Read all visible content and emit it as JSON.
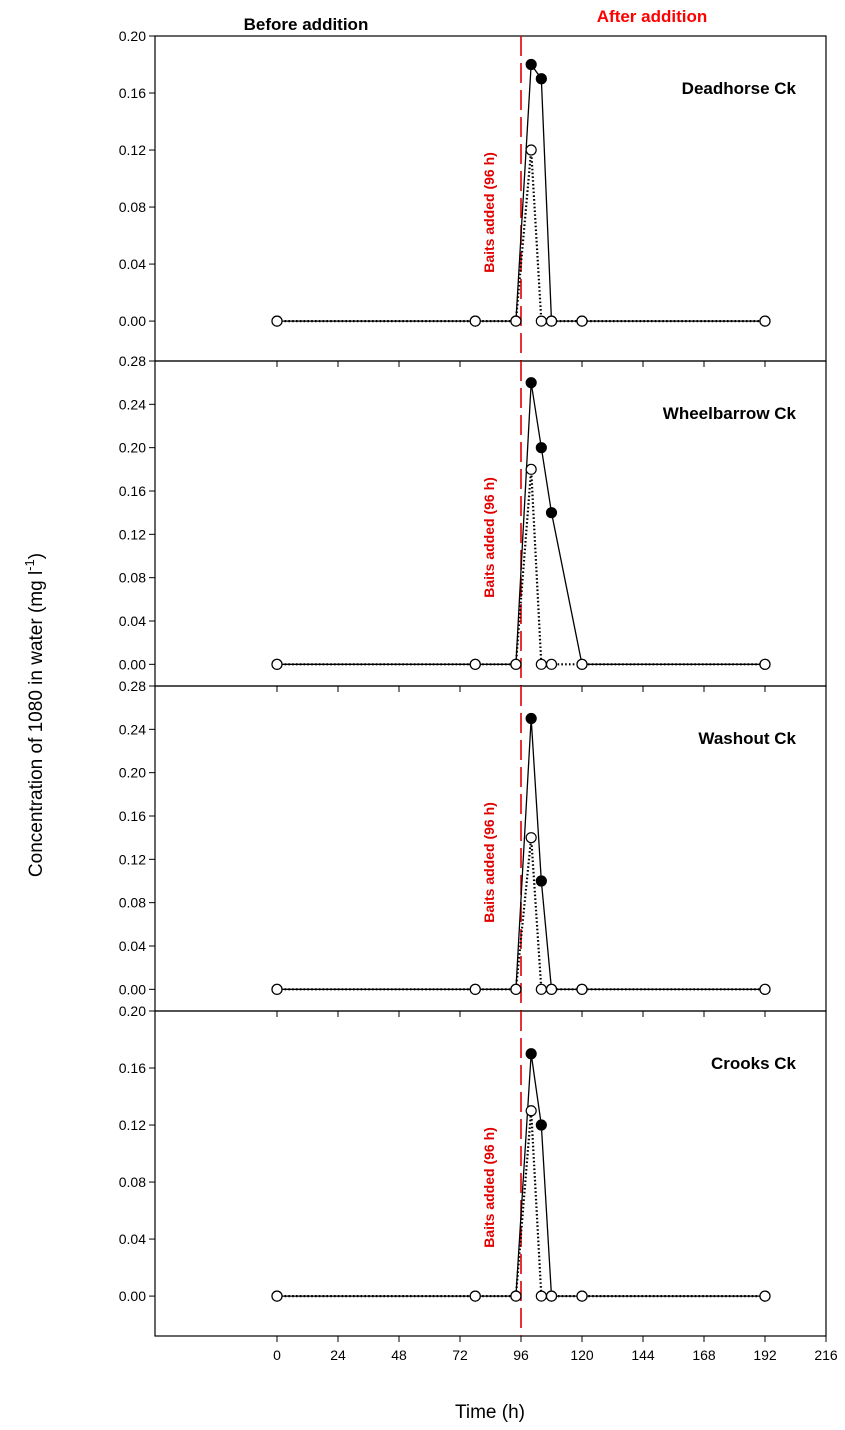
{
  "header": {
    "before_label": "Before addition",
    "after_label": "After addition",
    "after_color": "#ff0000"
  },
  "axes": {
    "ylabel": "Concentration of 1080 in water (mg l",
    "ylabel_superscript": "-1",
    "ylabel_close": ")",
    "xlabel": "Time (h)",
    "x_ticks": [
      0,
      24,
      48,
      72,
      96,
      120,
      144,
      168,
      192,
      216
    ],
    "x_range": [
      -48,
      216
    ]
  },
  "annotation": {
    "label": "Baits added (96 h)",
    "x": 96,
    "color": "#e00000"
  },
  "chart_data": [
    {
      "type": "line",
      "title": "Deadhorse Ck",
      "ylim": [
        -0.028,
        0.2
      ],
      "y_ticks": [
        "0.00",
        "0.04",
        "0.08",
        "0.12",
        "0.16",
        "0.20"
      ],
      "series": [
        {
          "style": "solid-filled",
          "x": [
            0,
            78,
            94,
            100,
            104,
            108,
            120,
            192
          ],
          "y": [
            0,
            0,
            0,
            0.18,
            0.17,
            0,
            0,
            0
          ],
          "marker_filled": [
            false,
            false,
            false,
            true,
            true,
            false,
            false,
            false
          ]
        },
        {
          "style": "dotted-open",
          "x": [
            0,
            78,
            94,
            100,
            104,
            108,
            120,
            192
          ],
          "y": [
            0,
            0,
            0,
            0.12,
            0,
            0,
            0,
            0
          ]
        }
      ]
    },
    {
      "type": "line",
      "title": "Wheelbarrow Ck",
      "ylim": [
        -0.02,
        0.28
      ],
      "y_ticks": [
        "0.00",
        "0.04",
        "0.08",
        "0.12",
        "0.16",
        "0.20",
        "0.24",
        "0.28"
      ],
      "series": [
        {
          "style": "solid-filled",
          "x": [
            0,
            78,
            94,
            100,
            104,
            108,
            120,
            192
          ],
          "y": [
            0,
            0,
            0,
            0.26,
            0.2,
            0.14,
            0,
            0
          ],
          "marker_filled": [
            false,
            false,
            false,
            true,
            true,
            true,
            false,
            false
          ]
        },
        {
          "style": "dotted-open",
          "x": [
            0,
            78,
            94,
            100,
            104,
            108,
            120,
            192
          ],
          "y": [
            0,
            0,
            0,
            0.18,
            0,
            0,
            0,
            0
          ]
        }
      ]
    },
    {
      "type": "line",
      "title": "Washout Ck",
      "ylim": [
        -0.02,
        0.28
      ],
      "y_ticks": [
        "0.00",
        "0.04",
        "0.08",
        "0.12",
        "0.16",
        "0.20",
        "0.24",
        "0.28"
      ],
      "series": [
        {
          "style": "solid-filled",
          "x": [
            0,
            78,
            94,
            100,
            104,
            108,
            120,
            192
          ],
          "y": [
            0,
            0,
            0,
            0.25,
            0.1,
            0,
            0,
            0
          ],
          "marker_filled": [
            false,
            false,
            false,
            true,
            true,
            false,
            false,
            false
          ]
        },
        {
          "style": "dotted-open",
          "x": [
            0,
            78,
            94,
            100,
            104,
            108,
            120,
            192
          ],
          "y": [
            0,
            0,
            0,
            0.14,
            0,
            0,
            0,
            0
          ]
        }
      ]
    },
    {
      "type": "line",
      "title": "Crooks Ck",
      "ylim": [
        -0.028,
        0.2
      ],
      "y_ticks": [
        "0.00",
        "0.04",
        "0.08",
        "0.12",
        "0.16",
        "0.20"
      ],
      "series": [
        {
          "style": "solid-filled",
          "x": [
            0,
            78,
            94,
            100,
            104,
            108,
            120,
            192
          ],
          "y": [
            0,
            0,
            0,
            0.17,
            0.12,
            0,
            0,
            0
          ],
          "marker_filled": [
            false,
            false,
            false,
            true,
            true,
            false,
            false,
            false
          ]
        },
        {
          "style": "dotted-open",
          "x": [
            0,
            78,
            94,
            100,
            104,
            108,
            120,
            192
          ],
          "y": [
            0,
            0,
            0,
            0.13,
            0,
            0,
            0,
            0
          ]
        }
      ]
    }
  ]
}
